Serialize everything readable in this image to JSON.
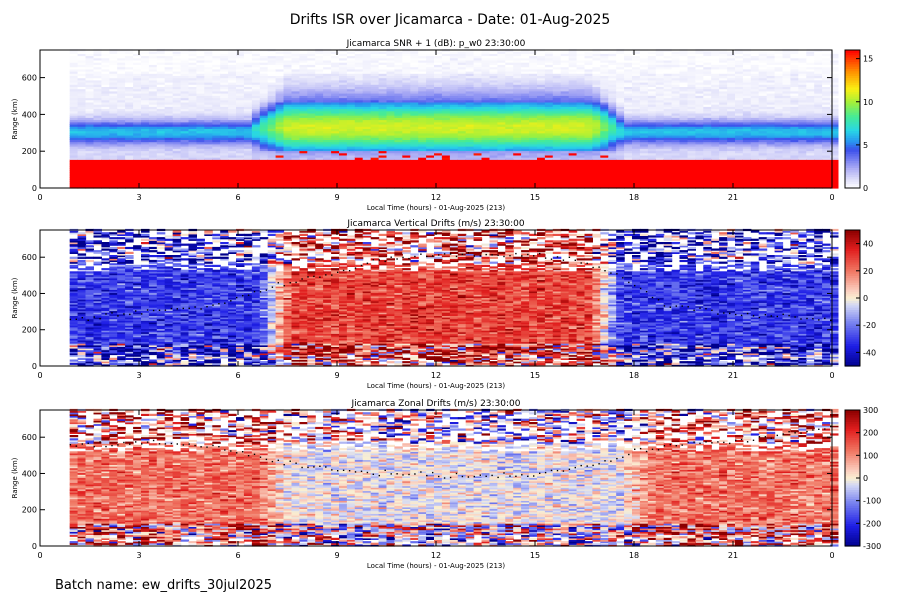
{
  "title": "Drifts ISR over Jicamarca - Date: 01-Aug-2025",
  "footer": "Batch name: ew_drifts_30jul2025",
  "colors": {
    "frame": "#000000",
    "text": "#000000",
    "nodata": "#ffffff"
  },
  "chart_data": [
    {
      "type": "heatmap",
      "title": "Jicamarca SNR + 1 (dB): p_w0 23:30:00",
      "xlabel": "Local Time (hours) - 01-Aug-2025 (213)",
      "ylabel": "Range (km)",
      "xlim": [
        0,
        24
      ],
      "ylim": [
        0,
        750
      ],
      "x_ticks": [
        "0",
        "3",
        "6",
        "9",
        "12",
        "15",
        "18",
        "21",
        "0"
      ],
      "y_ticks": [
        "0",
        "200",
        "400",
        "600"
      ],
      "colormap": "rainbow",
      "colorbar": {
        "min": 0,
        "max": 16,
        "ticks": [
          "0",
          "5",
          "10",
          "15"
        ]
      },
      "data_time_range": [
        0.9,
        24.0
      ],
      "field": "snr",
      "features": {
        "saturated_below_km": 150,
        "night_peak_km": 300,
        "day_layer_km": [
          200,
          460
        ],
        "day_peak_value": 8
      }
    },
    {
      "type": "heatmap",
      "title": "Jicamarca Vertical Drifts (m/s) 23:30:00",
      "xlabel": "Local Time (hours) - 01-Aug-2025 (213)",
      "ylabel": "Range (km)",
      "xlim": [
        0,
        24
      ],
      "ylim": [
        0,
        750
      ],
      "x_ticks": [
        "0",
        "3",
        "6",
        "9",
        "12",
        "15",
        "18",
        "21",
        "0"
      ],
      "y_ticks": [
        "0",
        "200",
        "400",
        "600"
      ],
      "colormap": "blue-white-red",
      "colorbar": {
        "min": -50,
        "max": 50,
        "ticks": [
          "-40",
          "-20",
          "0",
          "20",
          "40"
        ]
      },
      "data_time_range": [
        0.9,
        24.0
      ],
      "field": "vertical",
      "features": {
        "night_value": -30,
        "day_value": 30,
        "day_span_hours": [
          6.5,
          17.5
        ]
      },
      "peak_height_km": {
        "time": [
          1,
          3,
          5,
          6,
          7,
          9,
          10,
          12,
          14,
          16,
          17.5,
          19,
          21,
          22.5,
          24
        ],
        "height": [
          260,
          300,
          330,
          380,
          440,
          520,
          580,
          620,
          620,
          600,
          500,
          340,
          290,
          280,
          260
        ]
      }
    },
    {
      "type": "heatmap",
      "title": "Jicamarca Zonal Drifts (m/s) 23:30:00",
      "xlabel": "Local Time (hours) - 01-Aug-2025 (213)",
      "ylabel": "Range (km)",
      "xlim": [
        0,
        24
      ],
      "ylim": [
        0,
        750
      ],
      "x_ticks": [
        "0",
        "3",
        "6",
        "9",
        "12",
        "15",
        "18",
        "21",
        "0"
      ],
      "y_ticks": [
        "0",
        "200",
        "400",
        "600"
      ],
      "colormap": "blue-white-red",
      "colorbar": {
        "min": -300,
        "max": 300,
        "ticks": [
          "-300",
          "-200",
          "-100",
          "0",
          "100",
          "200",
          "300"
        ]
      },
      "data_time_range": [
        0.9,
        24.0
      ],
      "field": "zonal",
      "features": {
        "night_value": 130,
        "day_value": -10,
        "day_span_hours": [
          6.5,
          18.5
        ]
      },
      "peak_height_km": {
        "time": [
          1,
          3,
          5,
          6,
          7,
          9,
          11,
          13,
          15,
          17,
          18,
          19,
          21,
          22.5,
          24
        ],
        "height": [
          560,
          570,
          560,
          520,
          470,
          420,
          400,
          390,
          400,
          460,
          520,
          560,
          580,
          620,
          650
        ]
      }
    }
  ]
}
